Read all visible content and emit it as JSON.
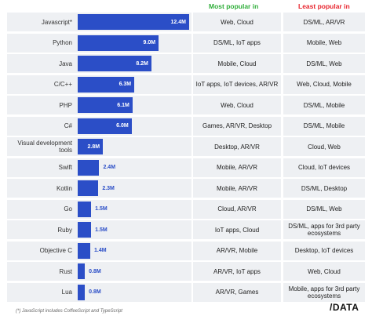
{
  "headers": {
    "most_popular": "Most popular in",
    "least_popular": "Least popular in"
  },
  "chart_data": {
    "type": "bar",
    "orientation": "horizontal",
    "categories": [
      "Javascript*",
      "Python",
      "Java",
      "C/C++",
      "PHP",
      "C#",
      "Visual development tools",
      "Swift",
      "Kotlin",
      "Go",
      "Ruby",
      "Objective C",
      "Rust",
      "Lua"
    ],
    "values": [
      12.4,
      9.0,
      8.2,
      6.3,
      6.1,
      6.0,
      2.8,
      2.4,
      2.3,
      1.5,
      1.5,
      1.4,
      0.8,
      0.8
    ],
    "value_labels": [
      "12.4M",
      "9.0M",
      "8.2M",
      "6.3M",
      "6.1M",
      "6.0M",
      "2.8M",
      "2.4M",
      "2.3M",
      "1.5M",
      "1.5M",
      "1.4M",
      "0.8M",
      "0.8M"
    ],
    "xlim": [
      0,
      12.4
    ],
    "bar_color": "#2b4ec7",
    "grid": false,
    "title": "",
    "xlabel": "",
    "ylabel": ""
  },
  "rows": [
    {
      "most": "Web, Cloud",
      "least": "DS/ML, AR/VR"
    },
    {
      "most": "DS/ML, IoT apps",
      "least": "Mobile, Web"
    },
    {
      "most": "Mobile, Cloud",
      "least": "DS/ML, Web"
    },
    {
      "most": "IoT apps, IoT devices, AR/VR",
      "least": "Web, Cloud, Mobile"
    },
    {
      "most": "Web, Cloud",
      "least": "DS/ML, Mobile"
    },
    {
      "most": "Games, AR/VR, Desktop",
      "least": "DS/ML, Mobile"
    },
    {
      "most": "Desktop, AR/VR",
      "least": "Cloud, Web"
    },
    {
      "most": "Mobile, AR/VR",
      "least": "Cloud, IoT devices"
    },
    {
      "most": "Mobile, AR/VR",
      "least": "DS/ML, Desktop"
    },
    {
      "most": "Cloud, AR/VR",
      "least": "DS/ML, Web"
    },
    {
      "most": "IoT apps, Cloud",
      "least": "DS/ML, apps for 3rd party ecosystems"
    },
    {
      "most": "AR/VR, Mobile",
      "least": "Desktop, IoT devices"
    },
    {
      "most": "AR/VR, IoT apps",
      "least": "Web, Cloud"
    },
    {
      "most": "AR/VR, Games",
      "least": "Mobile, apps for 3rd party ecosystems"
    }
  ],
  "footnote": "(*) JavaScript includes CoffeeScript and TypeScript",
  "logo": {
    "slash": "/",
    "text": "DATA"
  },
  "colors": {
    "most_header": "#2fae3a",
    "least_header": "#e8252e",
    "row_shade": "#eef0f3"
  }
}
